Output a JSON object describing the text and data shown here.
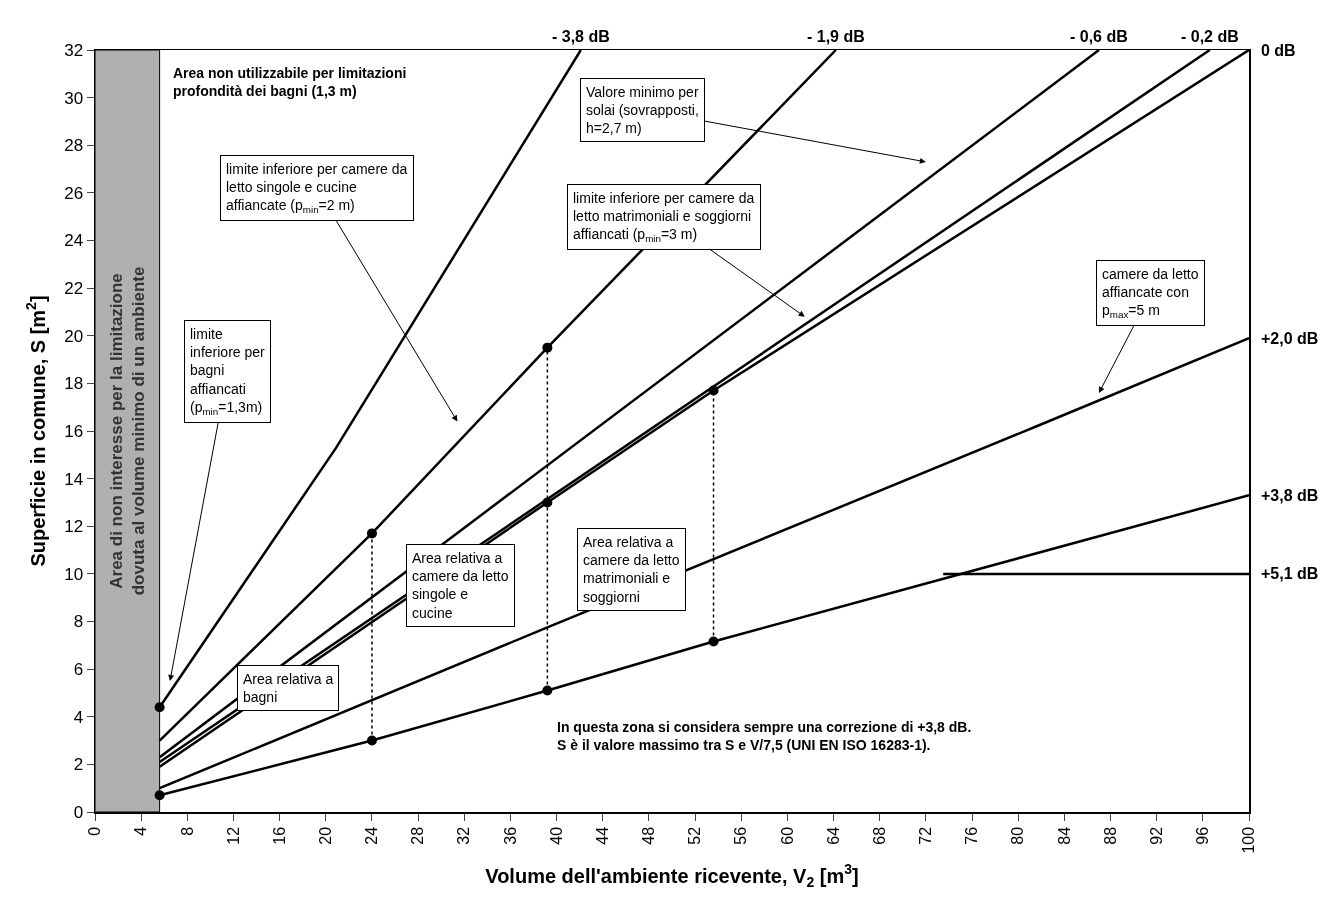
{
  "chart_data": {
    "type": "line",
    "xlabel": "Volume dell'ambiente ricevente, V$_{2}$ [m$^{3}$]",
    "ylabel": "Superficie in comune, S [m$^{2}$]",
    "xlim": [
      0,
      100
    ],
    "xticks": [
      0,
      4,
      8,
      12,
      16,
      20,
      24,
      28,
      32,
      36,
      40,
      44,
      48,
      52,
      56,
      60,
      64,
      68,
      72,
      76,
      80,
      84,
      88,
      92,
      96,
      100
    ],
    "ylim": [
      0,
      32
    ],
    "yticks": [
      0,
      2,
      4,
      6,
      8,
      10,
      12,
      14,
      16,
      18,
      20,
      22,
      24,
      26,
      28,
      30,
      32
    ],
    "grid": false,
    "legend": false,
    "series": [
      {
        "name": "+5,1 dB",
        "color": "#000000",
        "x": [
          73.5,
          100
        ],
        "values": [
          10,
          10
        ]
      },
      {
        "name": "+3,8 dB",
        "color": "#000000",
        "x": [
          5.6,
          24,
          39.2,
          53.6,
          100
        ],
        "values": [
          0.7,
          3.0,
          5.1,
          7.16,
          13.3
        ]
      },
      {
        "name": "+2,0 dB",
        "color": "#000000",
        "x": [
          5.6,
          39.2,
          81.6,
          100
        ],
        "values": [
          1.0,
          7.75,
          16.2,
          19.9
        ]
      },
      {
        "name": "0 dB",
        "color": "#000000",
        "x": [
          5.6,
          39.2,
          53.6,
          100
        ],
        "values": [
          1.9,
          13.0,
          17.7,
          32
        ]
      },
      {
        "name": "- 0,2 dB",
        "color": "#000000",
        "x": [
          5.6,
          96.6
        ],
        "values": [
          2.1,
          32
        ]
      },
      {
        "name": "- 0,6 dB",
        "color": "#000000",
        "x": [
          5.6,
          87
        ],
        "values": [
          2.3,
          32
        ]
      },
      {
        "name": "- 1,9 dB",
        "color": "#000000",
        "x": [
          5.6,
          24,
          39.2,
          64.2
        ],
        "values": [
          3.0,
          11.7,
          19.5,
          32
        ]
      },
      {
        "name": "- 3,8 dB",
        "color": "#000000",
        "x": [
          5.6,
          20.9,
          42.1
        ],
        "values": [
          4.4,
          15.3,
          32
        ]
      },
      {
        "line_style": "dotted",
        "color": "#000000",
        "x": [
          24,
          24
        ],
        "values": [
          3.0,
          11.7
        ]
      },
      {
        "line_style": "dotted",
        "color": "#000000",
        "x": [
          39.2,
          39.2
        ],
        "values": [
          5.1,
          19.5
        ]
      },
      {
        "line_style": "dotted",
        "color": "#000000",
        "x": [
          53.6,
          53.6
        ],
        "values": [
          7.16,
          17.7
        ]
      },
      {
        "type": "scatter",
        "marker": "circle",
        "color": "#000000",
        "x": [
          5.6,
          5.6,
          24,
          24,
          39.2,
          39.2,
          39.2,
          53.6,
          53.6
        ],
        "values": [
          4.4,
          0.7,
          11.7,
          3.0,
          19.5,
          13.0,
          5.1,
          17.7,
          7.16
        ]
      }
    ],
    "bands": [
      {
        "axis": "x",
        "from": 0,
        "to": 5.6,
        "color": "#b0b0b0",
        "label": "Area di non interesse per la limitazione dovuta al volume minimo di un ambiente"
      }
    ],
    "annotations": [
      "Area non utilizzabile per limitazioni profondità dei bagni (1,3 m)",
      "limite inferiore per camere da letto singole e cucine affiancate (p$_{min}$=2 m)",
      "limite inferiore per bagni affiancati (p$_{min}$=1,3m)",
      "Valore minimo per solai (sovrapposti, h=2,7 m)",
      "limite inferiore per camere da letto matrimoniali e soggiorni affiancati (p$_{min}$=3 m)",
      "camere da letto affiancate con p$_{max}$=5 m",
      "Area relativa a bagni",
      "Area relativa a camere da letto singole e cucine",
      "Area relativa a camere da letto matrimoniali e soggiorni",
      "In questa zona si considera sempre una correzione di +3,8 dB. S è il valore massimo tra S e V/7,5 (UNI EN ISO 16283-1)."
    ]
  }
}
